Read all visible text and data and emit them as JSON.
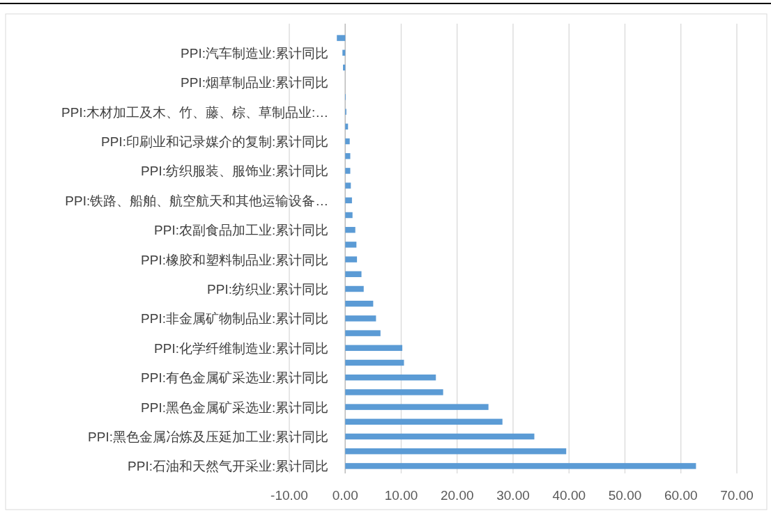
{
  "chart_data": {
    "type": "bar",
    "orientation": "horizontal",
    "color": "#5b9bd5",
    "grid": "x",
    "categories": [
      null,
      "PPI:汽车制造业:累计同比",
      null,
      "PPI:烟草制品业:累计同比",
      null,
      "PPI:木材加工及木、竹、藤、棕、草制品业:…",
      null,
      "PPI:印刷业和记录媒介的复制:累计同比",
      null,
      "PPI:纺织服装、服饰业:累计同比",
      null,
      "PPI:铁路、船舶、航空航天和其他运输设备…",
      null,
      "PPI:农副食品加工业:累计同比",
      null,
      "PPI:橡胶和塑料制品业:累计同比",
      null,
      "PPI:纺织业:累计同比",
      null,
      "PPI:非金属矿物制品业:累计同比",
      null,
      "PPI:化学纤维制造业:累计同比",
      null,
      "PPI:有色金属矿采选业:累计同比",
      null,
      "PPI:黑色金属矿采选业:累计同比",
      null,
      "PPI:黑色金属冶炼及压延加工业:累计同比",
      null,
      "PPI:石油和天然气开采业:累计同比"
    ],
    "values": [
      -1.5,
      -0.5,
      -0.4,
      0,
      0.1,
      0.2,
      0.5,
      0.8,
      0.9,
      0.9,
      1.0,
      1.2,
      1.3,
      1.8,
      2.0,
      2.1,
      2.9,
      3.3,
      5.0,
      5.5,
      6.3,
      10.2,
      10.5,
      16.2,
      17.5,
      25.6,
      28.1,
      33.8,
      39.5,
      62.7
    ],
    "xlim": [
      -10,
      70
    ],
    "xticks": [
      {
        "value": -10,
        "label": "-10.00"
      },
      {
        "value": 0,
        "label": "0.00"
      },
      {
        "value": 10,
        "label": "10.00"
      },
      {
        "value": 20,
        "label": "20.00"
      },
      {
        "value": 30,
        "label": "30.00"
      },
      {
        "value": 40,
        "label": "40.00"
      },
      {
        "value": 50,
        "label": "50.00"
      },
      {
        "value": 60,
        "label": "60.00"
      },
      {
        "value": 70,
        "label": "70.00"
      }
    ]
  }
}
